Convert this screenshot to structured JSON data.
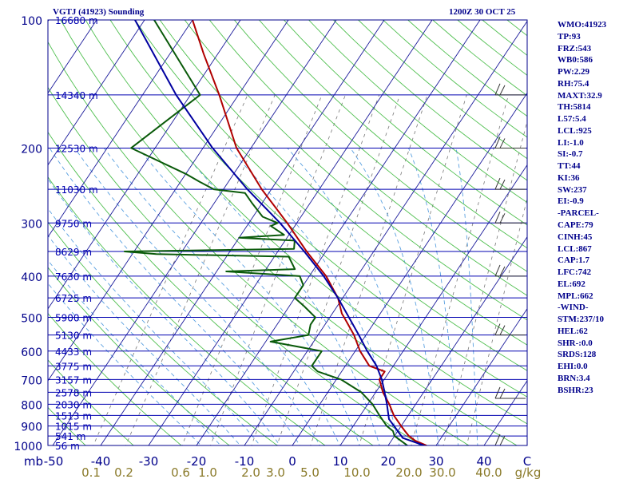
{
  "header": {
    "station_title": "VGTJ (41923) Sounding",
    "time_title": "1200Z 30 OCT 25"
  },
  "indices": [
    "WMO:41923",
    "TP:93",
    "FRZ:543",
    "WB0:586",
    "PW:2.29",
    "RH:75.4",
    "MAXT:32.9",
    "TH:5814",
    "L57:5.4",
    "LCL:925",
    "LI:-1.0",
    "SI:-0.7",
    "TT:44",
    "KI:36",
    "SW:237",
    "EI:-0.9",
    "-PARCEL-",
    "CAPE:79",
    "CINH:45",
    "LCL:867",
    "CAP:1.7",
    "LFC:742",
    "EL:692",
    "MPL:662",
    "-WIND-",
    "STM:237/10",
    "HEL:62",
    "SHR-:0.0",
    "SRDS:128",
    "EHI:0.0",
    "BRN:3.4",
    "BSHR:23"
  ],
  "chart_data": {
    "type": "skew-t",
    "y_axis": {
      "unit": "mb",
      "range": [
        1000,
        100
      ],
      "scale": "log",
      "tick_labels": [
        100,
        200,
        300,
        400,
        500,
        600,
        700,
        800,
        900,
        1000
      ]
    },
    "x_axis": {
      "unit": "°C",
      "range": [
        -50,
        50
      ],
      "tick_labels": [
        "mb",
        "-50",
        "-40",
        "-30",
        "-20",
        "-10",
        "0",
        "10",
        "20",
        "30",
        "40",
        "C"
      ]
    },
    "mixing_ratio_labels": {
      "unit": "g/kg",
      "values": [
        "0.1",
        "0.2",
        "0.6",
        "1.0",
        "2.0",
        "3.0",
        "5.0",
        "10.0",
        "20.0",
        "30.0",
        "40.0",
        "g/kg"
      ]
    },
    "height_levels": [
      {
        "p": 100,
        "label": "16680 m"
      },
      {
        "p": 150,
        "label": "14340 m"
      },
      {
        "p": 200,
        "label": "12530 m"
      },
      {
        "p": 250,
        "label": "11030 m"
      },
      {
        "p": 300,
        "label": "9750 m"
      },
      {
        "p": 350,
        "label": "8629 m"
      },
      {
        "p": 400,
        "label": "7630 m"
      },
      {
        "p": 450,
        "label": "6725 m"
      },
      {
        "p": 500,
        "label": "5900 m"
      },
      {
        "p": 550,
        "label": "5130 m"
      },
      {
        "p": 600,
        "label": "4433 m"
      },
      {
        "p": 650,
        "label": "3775 m"
      },
      {
        "p": 700,
        "label": "3157 m"
      },
      {
        "p": 750,
        "label": "2578 m"
      },
      {
        "p": 800,
        "label": "2030 m"
      },
      {
        "p": 850,
        "label": "1513 m"
      },
      {
        "p": 900,
        "label": "1015 m"
      },
      {
        "p": 950,
        "label": "541 m"
      },
      {
        "p": 1000,
        "label": "56 m"
      }
    ],
    "series": [
      {
        "name": "temperature",
        "color": "#b00000",
        "points": [
          {
            "p": 1000,
            "t": 28
          },
          {
            "p": 975,
            "t": 25
          },
          {
            "p": 950,
            "t": 23
          },
          {
            "p": 925,
            "t": 21.5
          },
          {
            "p": 900,
            "t": 20
          },
          {
            "p": 850,
            "t": 17
          },
          {
            "p": 800,
            "t": 14.5
          },
          {
            "p": 750,
            "t": 11.5
          },
          {
            "p": 700,
            "t": 9
          },
          {
            "p": 670,
            "t": 9
          },
          {
            "p": 650,
            "t": 5
          },
          {
            "p": 600,
            "t": 1
          },
          {
            "p": 550,
            "t": -2.5
          },
          {
            "p": 500,
            "t": -7
          },
          {
            "p": 490,
            "t": -8
          },
          {
            "p": 450,
            "t": -11
          },
          {
            "p": 400,
            "t": -16.5
          },
          {
            "p": 350,
            "t": -24
          },
          {
            "p": 300,
            "t": -32
          },
          {
            "p": 250,
            "t": -42
          },
          {
            "p": 200,
            "t": -53
          },
          {
            "p": 150,
            "t": -64
          },
          {
            "p": 120,
            "t": -73
          },
          {
            "p": 100,
            "t": -80
          }
        ]
      },
      {
        "name": "dewpoint",
        "color": "#0a5a0a",
        "points": [
          {
            "p": 1000,
            "t": 24
          },
          {
            "p": 975,
            "t": 22
          },
          {
            "p": 950,
            "t": 20
          },
          {
            "p": 925,
            "t": 19
          },
          {
            "p": 900,
            "t": 17
          },
          {
            "p": 850,
            "t": 14
          },
          {
            "p": 800,
            "t": 11
          },
          {
            "p": 750,
            "t": 7
          },
          {
            "p": 700,
            "t": 1
          },
          {
            "p": 670,
            "t": -5
          },
          {
            "p": 650,
            "t": -7
          },
          {
            "p": 600,
            "t": -7
          },
          {
            "p": 570,
            "t": -19
          },
          {
            "p": 550,
            "t": -12
          },
          {
            "p": 520,
            "t": -13
          },
          {
            "p": 500,
            "t": -13
          },
          {
            "p": 470,
            "t": -17
          },
          {
            "p": 450,
            "t": -20
          },
          {
            "p": 420,
            "t": -20
          },
          {
            "p": 400,
            "t": -22
          },
          {
            "p": 390,
            "t": -38
          },
          {
            "p": 385,
            "t": -24
          },
          {
            "p": 360,
            "t": -27
          },
          {
            "p": 355,
            "t": -55
          },
          {
            "p": 350,
            "t": -62
          },
          {
            "p": 345,
            "t": -27
          },
          {
            "p": 330,
            "t": -28
          },
          {
            "p": 325,
            "t": -40
          },
          {
            "p": 320,
            "t": -31
          },
          {
            "p": 305,
            "t": -35
          },
          {
            "p": 300,
            "t": -34
          },
          {
            "p": 290,
            "t": -38
          },
          {
            "p": 270,
            "t": -42
          },
          {
            "p": 255,
            "t": -45
          },
          {
            "p": 250,
            "t": -52
          },
          {
            "p": 240,
            "t": -56
          },
          {
            "p": 230,
            "t": -60
          },
          {
            "p": 200,
            "t": -75
          },
          {
            "p": 150,
            "t": -68
          },
          {
            "p": 100,
            "t": -88
          }
        ]
      },
      {
        "name": "parcel",
        "color": "#0000a0",
        "points": [
          {
            "p": 1000,
            "t": 27.5
          },
          {
            "p": 960,
            "t": 22
          },
          {
            "p": 925,
            "t": 20
          },
          {
            "p": 867,
            "t": 16.5
          },
          {
            "p": 800,
            "t": 14
          },
          {
            "p": 742,
            "t": 11.5
          },
          {
            "p": 700,
            "t": 9.5
          },
          {
            "p": 650,
            "t": 6.5
          },
          {
            "p": 600,
            "t": 2.5
          },
          {
            "p": 550,
            "t": -1.5
          },
          {
            "p": 500,
            "t": -6
          },
          {
            "p": 450,
            "t": -11
          },
          {
            "p": 400,
            "t": -17
          },
          {
            "p": 350,
            "t": -24.5
          },
          {
            "p": 300,
            "t": -33.5
          },
          {
            "p": 250,
            "t": -45
          },
          {
            "p": 200,
            "t": -58
          },
          {
            "p": 150,
            "t": -73
          },
          {
            "p": 100,
            "t": -92
          }
        ]
      }
    ],
    "wind_barbs": [
      {
        "p": 150
      },
      {
        "p": 200
      },
      {
        "p": 250
      },
      {
        "p": 300
      },
      {
        "p": 400
      },
      {
        "p": 550
      },
      {
        "p": 775
      },
      {
        "p": 1000
      }
    ]
  },
  "style": {
    "axis_color": "#00008b",
    "isobar_color": "#0000b0",
    "isotherm_color": "#1a1a9a",
    "dry_adiabat_color": "#4fbf4f",
    "moist_adiabat_color": "#5aa0e0",
    "mixing_ratio_color": "#777777",
    "tick_text_color": "#00008b",
    "mixing_text_color": "#8a7a2a"
  }
}
